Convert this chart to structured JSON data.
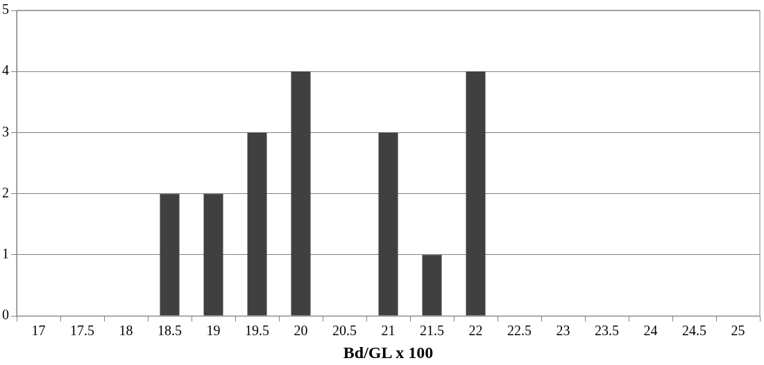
{
  "chart_data": {
    "type": "bar",
    "xlabel": "Bd/GL x 100",
    "categories": [
      "17",
      "17.5",
      "18",
      "18.5",
      "19",
      "19.5",
      "20",
      "20.5",
      "21",
      "21.5",
      "22",
      "22.5",
      "23",
      "23.5",
      "24",
      "24.5",
      "25"
    ],
    "values": [
      0,
      0,
      0,
      2,
      2,
      3,
      4,
      0,
      3,
      1,
      4,
      0,
      0,
      0,
      0,
      0,
      0
    ],
    "color": "#404040",
    "ylim": [
      0,
      5
    ],
    "yticks": [
      0,
      1,
      2,
      3,
      4,
      5
    ],
    "grid": "y",
    "legend": false
  }
}
